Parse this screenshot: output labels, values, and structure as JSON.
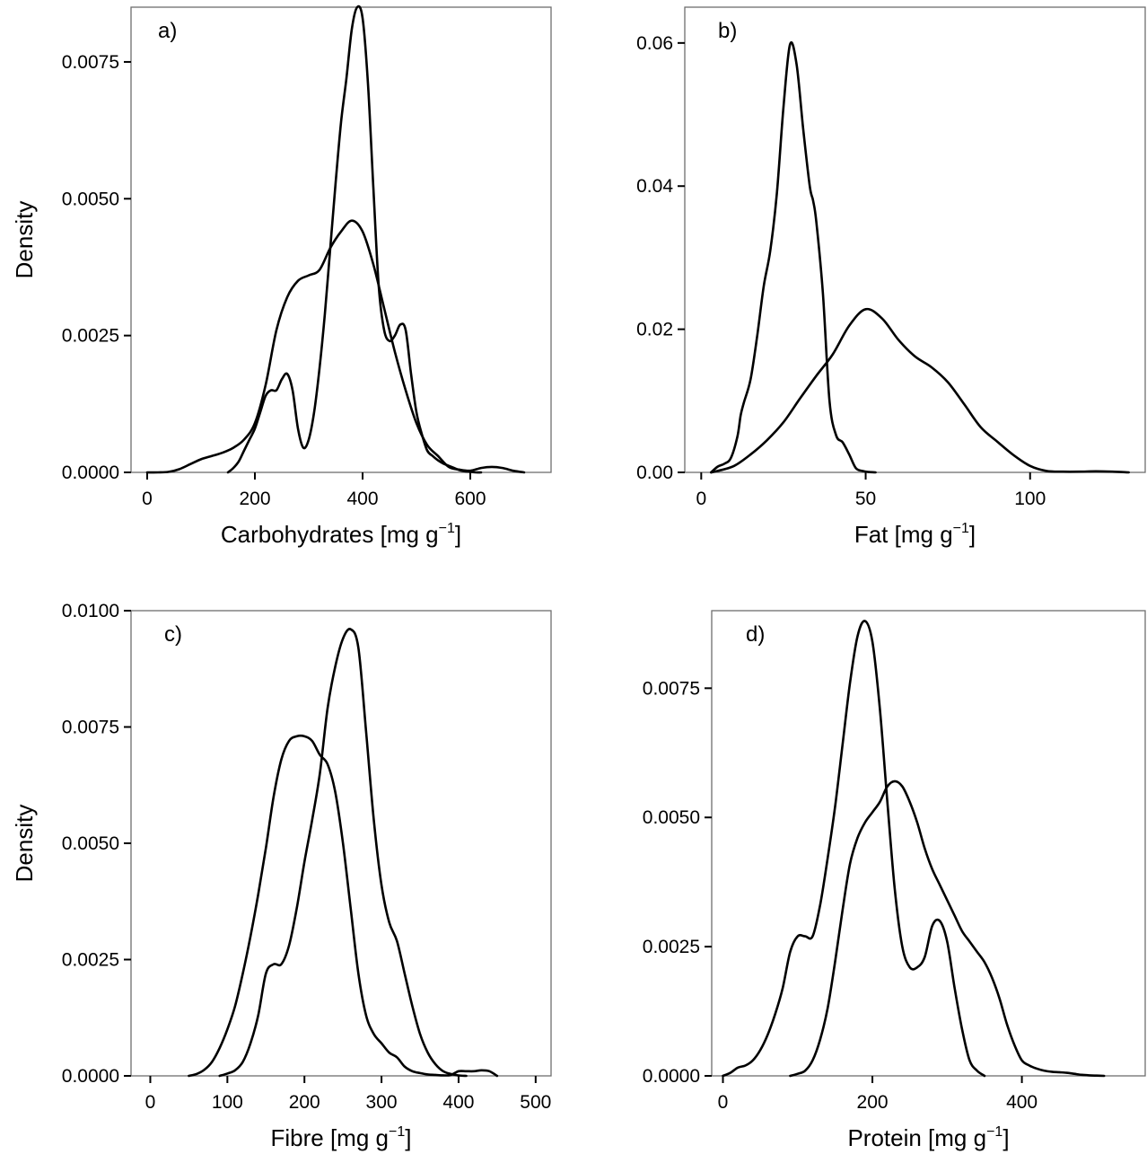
{
  "chart_data": [
    {
      "type": "line",
      "panel_label": "a)",
      "xlabel": "Carbohydrates [mg g",
      "xlabel_sup": "−1",
      "xlabel_end": "]",
      "ylabel": "Density",
      "xlim": [
        -30,
        750
      ],
      "ylim": [
        0,
        0.0085
      ],
      "xticks": [
        0,
        200,
        400,
        600
      ],
      "xtick_labels": [
        "0",
        "200",
        "400",
        "600"
      ],
      "yticks": [
        0,
        0.0025,
        0.005,
        0.0075
      ],
      "ytick_labels": [
        "0.0000",
        "0.0025",
        "0.0050",
        "0.0075"
      ],
      "series": [
        {
          "x": [
            0,
            20,
            40,
            60,
            80,
            100,
            120,
            140,
            160,
            180,
            200,
            220,
            240,
            260,
            280,
            300,
            320,
            340,
            360,
            380,
            400,
            420,
            440,
            460,
            480,
            500,
            520,
            540,
            560,
            580,
            600,
            620,
            640,
            660,
            680,
            700
          ],
          "y": [
            0,
            0,
            1e-05,
            6e-05,
            0.00015,
            0.00024,
            0.0003,
            0.00036,
            0.00045,
            0.0006,
            0.0009,
            0.0016,
            0.0026,
            0.0032,
            0.0035,
            0.0036,
            0.0037,
            0.0041,
            0.0044,
            0.0046,
            0.0044,
            0.0038,
            0.003,
            0.0022,
            0.0015,
            0.0009,
            0.0005,
            0.0003,
            0.0001,
            5e-05,
            3e-05,
            8e-05,
            0.0001,
            8e-05,
            3e-05,
            0
          ]
        },
        {
          "x": [
            150,
            160,
            170,
            180,
            190,
            200,
            210,
            220,
            230,
            240,
            250,
            260,
            270,
            280,
            290,
            300,
            310,
            320,
            330,
            340,
            350,
            360,
            370,
            380,
            390,
            400,
            410,
            420,
            430,
            440,
            450,
            460,
            470,
            480,
            490,
            500,
            510,
            520,
            530,
            540,
            550,
            560,
            570,
            580,
            590,
            600,
            610,
            620
          ],
          "y": [
            0,
            8e-05,
            0.0002,
            0.0004,
            0.0006,
            0.0008,
            0.0011,
            0.0014,
            0.0015,
            0.0015,
            0.0017,
            0.0018,
            0.0015,
            0.0008,
            0.00045,
            0.0006,
            0.0011,
            0.0019,
            0.0029,
            0.0041,
            0.0053,
            0.0064,
            0.0072,
            0.0081,
            0.0085,
            0.0083,
            0.0071,
            0.0052,
            0.0034,
            0.0026,
            0.0024,
            0.0025,
            0.0027,
            0.0026,
            0.0018,
            0.0011,
            0.0007,
            0.0004,
            0.0003,
            0.00022,
            0.00016,
            0.00012,
            8e-05,
            4e-05,
            2e-05,
            1e-05,
            0,
            0
          ]
        }
      ]
    },
    {
      "type": "line",
      "panel_label": "b)",
      "xlabel": "Fat [mg g",
      "xlabel_sup": "−1",
      "xlabel_end": "]",
      "ylabel": "",
      "xlim": [
        -5,
        135
      ],
      "ylim": [
        0,
        0.065
      ],
      "xticks": [
        0,
        50,
        100
      ],
      "xtick_labels": [
        "0",
        "50",
        "100"
      ],
      "yticks": [
        0,
        0.02,
        0.04,
        0.06
      ],
      "ytick_labels": [
        "0.00",
        "0.02",
        "0.04",
        "0.06"
      ],
      "series": [
        {
          "x": [
            3,
            5,
            7,
            9,
            11,
            12,
            13,
            15,
            17,
            19,
            21,
            23,
            25,
            27,
            29,
            31,
            33,
            34,
            35,
            37,
            39,
            41,
            43,
            45,
            47,
            49,
            51,
            53
          ],
          "y": [
            0,
            0.0008,
            0.0012,
            0.002,
            0.005,
            0.008,
            0.0098,
            0.013,
            0.019,
            0.026,
            0.031,
            0.039,
            0.051,
            0.0598,
            0.057,
            0.048,
            0.04,
            0.038,
            0.035,
            0.025,
            0.01,
            0.0052,
            0.0042,
            0.0025,
            0.0006,
            0.0002,
            5e-05,
            0
          ]
        },
        {
          "x": [
            3,
            5,
            10,
            15,
            20,
            25,
            30,
            35,
            40,
            45,
            50,
            55,
            60,
            65,
            70,
            75,
            80,
            85,
            90,
            95,
            100,
            105,
            110,
            115,
            120,
            125,
            130
          ],
          "y": [
            0,
            0.0002,
            0.0009,
            0.0025,
            0.0045,
            0.007,
            0.0103,
            0.0135,
            0.0165,
            0.0205,
            0.0228,
            0.0215,
            0.0185,
            0.0162,
            0.0147,
            0.0126,
            0.0095,
            0.0063,
            0.0043,
            0.0024,
            0.0009,
            0.0002,
            0.0001,
            0.0001,
            0.00015,
            0.0001,
            0
          ]
        }
      ]
    },
    {
      "type": "line",
      "panel_label": "c)",
      "xlabel": "Fibre [mg g",
      "xlabel_sup": "−1",
      "xlabel_end": "]",
      "ylabel": "Density",
      "xlim": [
        -25,
        520
      ],
      "ylim": [
        0,
        0.01
      ],
      "xticks": [
        0,
        100,
        200,
        300,
        400,
        500
      ],
      "xtick_labels": [
        "0",
        "100",
        "200",
        "300",
        "400",
        "500"
      ],
      "yticks": [
        0,
        0.0025,
        0.005,
        0.0075,
        0.01
      ],
      "ytick_labels": [
        "0.0000",
        "0.0025",
        "0.0050",
        "0.0075",
        "0.0100"
      ],
      "series": [
        {
          "x": [
            50,
            60,
            70,
            80,
            90,
            100,
            110,
            120,
            130,
            140,
            150,
            160,
            170,
            180,
            190,
            200,
            210,
            220,
            230,
            240,
            250,
            260,
            270,
            280,
            290,
            300,
            310,
            320,
            330,
            340,
            350,
            360,
            370,
            380,
            390,
            400,
            410,
            420,
            430,
            440,
            450
          ],
          "y": [
            0,
            4e-05,
            0.00013,
            0.0003,
            0.0006,
            0.001,
            0.0015,
            0.0022,
            0.003,
            0.0039,
            0.0049,
            0.006,
            0.0068,
            0.0072,
            0.0073,
            0.0073,
            0.0072,
            0.0069,
            0.0067,
            0.0061,
            0.005,
            0.0036,
            0.0022,
            0.0013,
            0.0009,
            0.0007,
            0.0005,
            0.0004,
            0.0002,
            0.0001,
            6e-05,
            3e-05,
            2e-05,
            1e-05,
            2e-05,
            0.0001,
            0.0001,
            0.0001,
            0.00012,
            0.0001,
            0
          ]
        },
        {
          "x": [
            90,
            100,
            110,
            120,
            130,
            140,
            150,
            160,
            170,
            180,
            190,
            200,
            210,
            220,
            230,
            240,
            250,
            260,
            270,
            280,
            290,
            300,
            310,
            320,
            330,
            340,
            350,
            360,
            370,
            380,
            390,
            400,
            410
          ],
          "y": [
            0,
            5e-05,
            0.00012,
            0.0003,
            0.0007,
            0.0013,
            0.0022,
            0.0024,
            0.0024,
            0.0028,
            0.0036,
            0.0046,
            0.0055,
            0.0065,
            0.0079,
            0.0088,
            0.0094,
            0.0096,
            0.0092,
            0.0074,
            0.0055,
            0.0041,
            0.0033,
            0.0029,
            0.0022,
            0.0015,
            0.0009,
            0.0005,
            0.00025,
            0.0001,
            4e-05,
            1e-05,
            0
          ]
        }
      ]
    },
    {
      "type": "line",
      "panel_label": "d)",
      "xlabel": "Protein [mg g",
      "xlabel_sup": "−1",
      "xlabel_end": "]",
      "ylabel": "",
      "xlim": [
        -15,
        565
      ],
      "ylim": [
        0,
        0.009
      ],
      "xticks": [
        0,
        200,
        400
      ],
      "xtick_labels": [
        "0",
        "200",
        "400"
      ],
      "yticks": [
        0,
        0.0025,
        0.005,
        0.0075
      ],
      "ytick_labels": [
        "0.0000",
        "0.0025",
        "0.0050",
        "0.0075"
      ],
      "series": [
        {
          "x": [
            0,
            10,
            20,
            30,
            40,
            50,
            60,
            70,
            80,
            90,
            100,
            110,
            120,
            130,
            140,
            150,
            160,
            170,
            180,
            190,
            200,
            210,
            220,
            230,
            240,
            250,
            260,
            270,
            280,
            290,
            300,
            310,
            320,
            330,
            340,
            350
          ],
          "y": [
            0,
            6e-05,
            0.00016,
            0.0002,
            0.0003,
            0.0005,
            0.0008,
            0.0012,
            0.0017,
            0.0024,
            0.0027,
            0.0027,
            0.0027,
            0.0033,
            0.0042,
            0.0052,
            0.0064,
            0.0076,
            0.0085,
            0.0088,
            0.0084,
            0.0071,
            0.0053,
            0.0036,
            0.0025,
            0.0021,
            0.0021,
            0.0023,
            0.0029,
            0.003,
            0.0026,
            0.0017,
            0.0009,
            0.0003,
            0.0001,
            0
          ]
        },
        {
          "x": [
            90,
            100,
            110,
            120,
            130,
            140,
            150,
            160,
            170,
            180,
            190,
            200,
            210,
            220,
            230,
            240,
            250,
            260,
            270,
            280,
            290,
            300,
            310,
            320,
            330,
            340,
            350,
            360,
            370,
            380,
            390,
            400,
            410,
            420,
            430,
            440,
            450,
            460,
            470,
            480,
            490,
            500,
            510
          ],
          "y": [
            0,
            4e-05,
            0.0001,
            0.0003,
            0.0007,
            0.0013,
            0.0022,
            0.0032,
            0.0041,
            0.0046,
            0.0049,
            0.0051,
            0.0053,
            0.0056,
            0.0057,
            0.0056,
            0.0053,
            0.0049,
            0.0044,
            0.004,
            0.0037,
            0.0034,
            0.0031,
            0.0028,
            0.0026,
            0.0024,
            0.0022,
            0.0019,
            0.0015,
            0.001,
            0.0006,
            0.0003,
            0.0002,
            0.00014,
            0.0001,
            8e-05,
            7e-05,
            6e-05,
            4e-05,
            2e-05,
            1e-05,
            5e-06,
            0
          ]
        }
      ]
    }
  ]
}
